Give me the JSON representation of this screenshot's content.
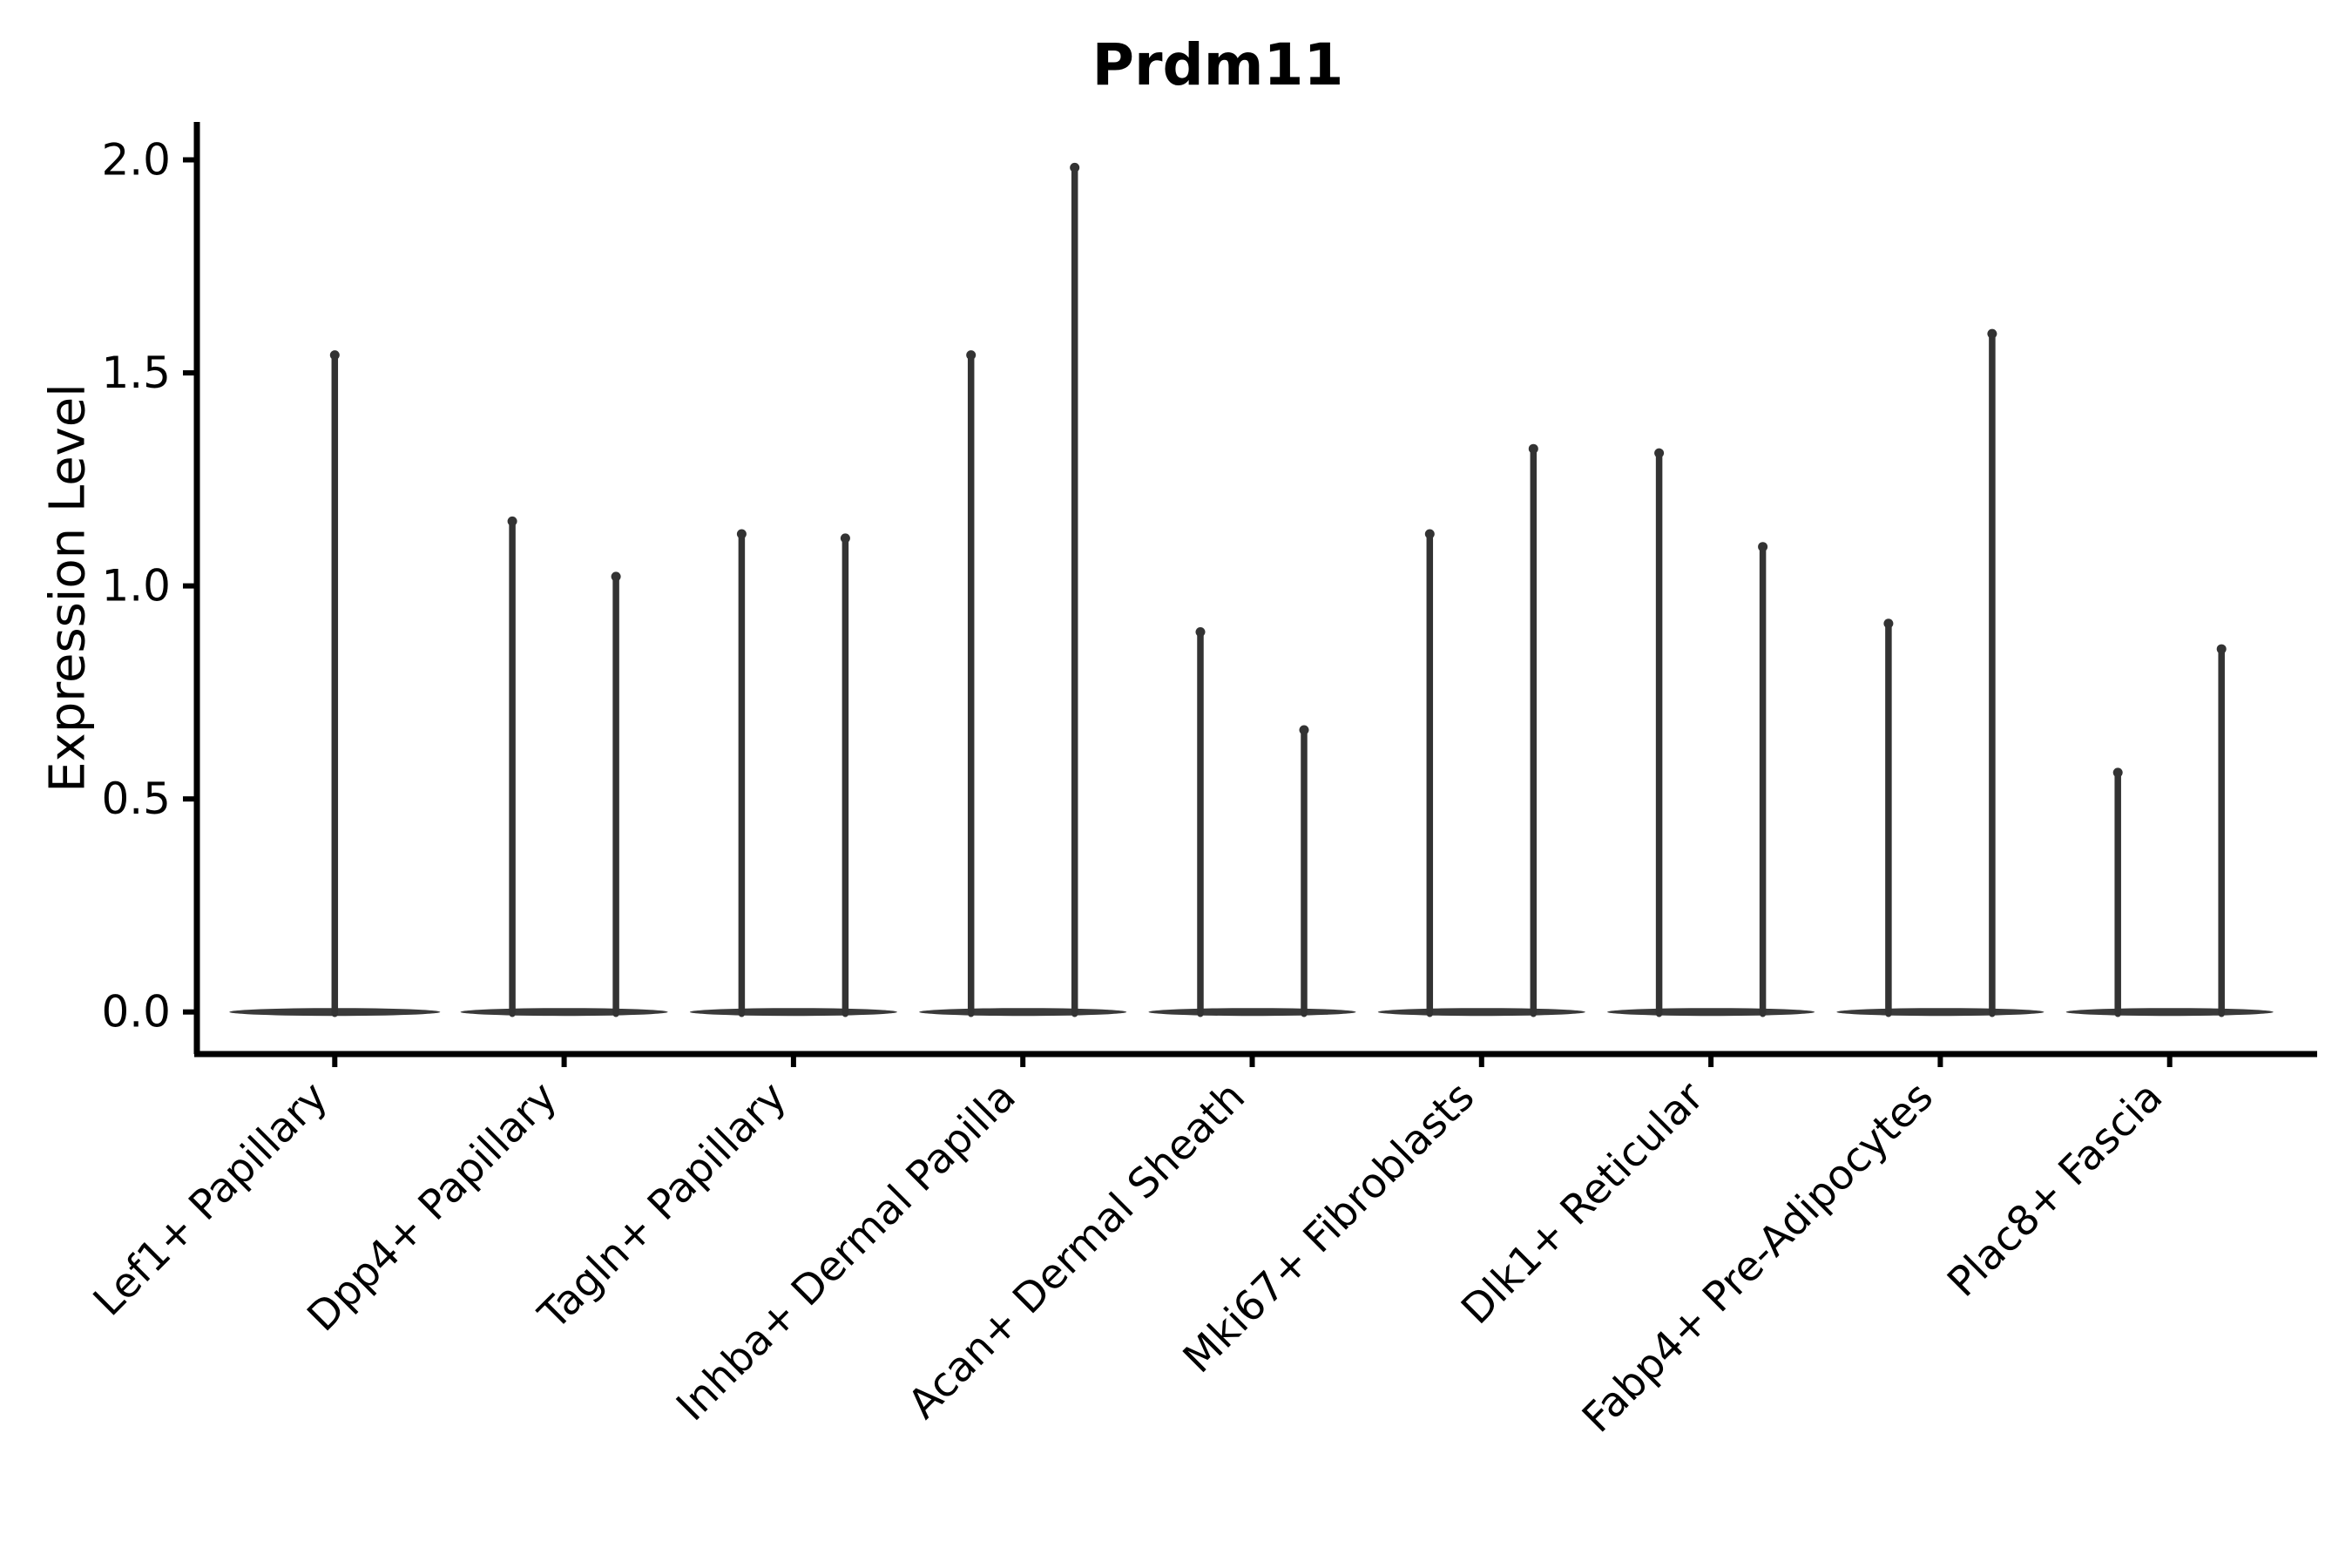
{
  "chart_data": {
    "type": "violin",
    "title": "Prdm11",
    "xlabel": "",
    "ylabel": "Expression Level",
    "ylim": [
      0.0,
      2.05
    ],
    "grid": false,
    "legend": "none",
    "yticks": [
      {
        "value": 0.0,
        "label": "0.0"
      },
      {
        "value": 0.5,
        "label": "0.5"
      },
      {
        "value": 1.0,
        "label": "1.0"
      },
      {
        "value": 1.5,
        "label": "1.5"
      },
      {
        "value": 2.0,
        "label": "2.0"
      }
    ],
    "categories": [
      {
        "label": "Lef1+ Papillary",
        "violin_max": [
          1.55
        ]
      },
      {
        "label": "Dpp4+ Papillary",
        "violin_max": [
          1.16,
          1.03
        ]
      },
      {
        "label": "Tagln+ Papillary",
        "violin_max": [
          1.13,
          1.12
        ]
      },
      {
        "label": "Inhba+ Dermal Papilla",
        "violin_max": [
          1.55,
          1.99
        ]
      },
      {
        "label": "Acan+ Dermal Sheath",
        "violin_max": [
          0.9,
          0.67
        ]
      },
      {
        "label": "Mki67+ Fibroblasts",
        "violin_max": [
          1.13,
          1.33
        ]
      },
      {
        "label": "Dlk1+ Reticular",
        "violin_max": [
          1.32,
          1.1
        ]
      },
      {
        "label": "Fabp4+ Pre-Adipocytes",
        "violin_max": [
          0.92,
          1.6
        ]
      },
      {
        "label": "Plac8+ Fascia",
        "violin_max": [
          0.57,
          0.86
        ]
      }
    ],
    "description": "Violin plot of Prdm11 expression; each violin collapses to a wide flat base at 0 with a thin spike up to its maximum expression value."
  },
  "colors": {
    "background": "#ffffff",
    "violin": "#333333",
    "violin_base": "#3a3a3a",
    "axis": "#000000",
    "text": "#000000"
  }
}
